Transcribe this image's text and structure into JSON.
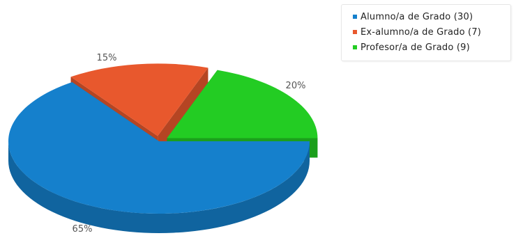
{
  "chart_data": {
    "type": "pie",
    "style": "3d-exploded",
    "slices": [
      {
        "label": "Alumno/a de Grado (30)",
        "value": 30,
        "percent_label": "65%",
        "color": "#1580cc"
      },
      {
        "label": "Ex-alumno/a de Grado (7)",
        "value": 7,
        "percent_label": "15%",
        "color": "#e8582d"
      },
      {
        "label": "Profesor/a de Grado (9)",
        "value": 9,
        "percent_label": "20%",
        "color": "#23cc23"
      }
    ],
    "legend_position": "top-right"
  }
}
